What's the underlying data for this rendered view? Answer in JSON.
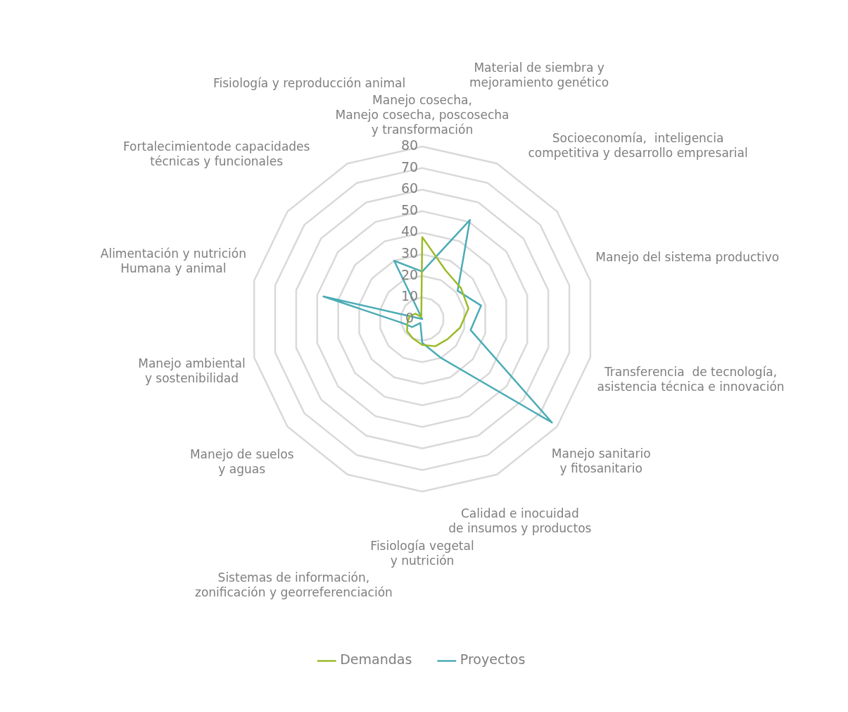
{
  "chart_data": {
    "type": "radar",
    "categories": [
      "Manejo cosecha,\nManejo cosecha, poscosecha\ny transformación",
      "Material de siembra y\nmejoramiento genético",
      "Socioeconomía,  inteligencia\ncompetitiva y desarrollo empresarial",
      "Manejo del sistema productivo",
      "Transferencia  de tecnología,\nasistencia técnica e innovación",
      "Manejo sanitario\ny fitosanitario",
      "Calidad e inocuidad\nde insumos y productos",
      "Fisiología vegetal\ny nutrición",
      "Sistemas de información,\nzonificación y georreferenciación",
      "Manejo de suelos\ny aguas",
      "Manejo ambiental\ny sostenibilidad",
      "Alimentación y nutrición\nHumana y animal",
      "Fortalecimientode capacidades\ntécnicas y funcionales",
      "Fisiología y reproducción animal"
    ],
    "series": [
      {
        "name": "Demandas",
        "color": "#9bbb2a",
        "values": [
          38,
          25,
          23,
          22,
          18,
          15,
          14,
          12,
          10,
          9,
          7,
          6,
          4,
          1
        ]
      },
      {
        "name": "Proyectos",
        "color": "#4bacb6",
        "values": [
          22,
          51,
          21,
          28,
          23,
          77,
          20,
          11,
          2,
          6,
          9,
          47,
          0,
          30
        ]
      }
    ],
    "ylim": [
      0,
      80
    ],
    "yticks": [
      0,
      10,
      20,
      30,
      40,
      50,
      60,
      70,
      80
    ],
    "grid": true,
    "legend": "bottom",
    "marker": "none"
  }
}
